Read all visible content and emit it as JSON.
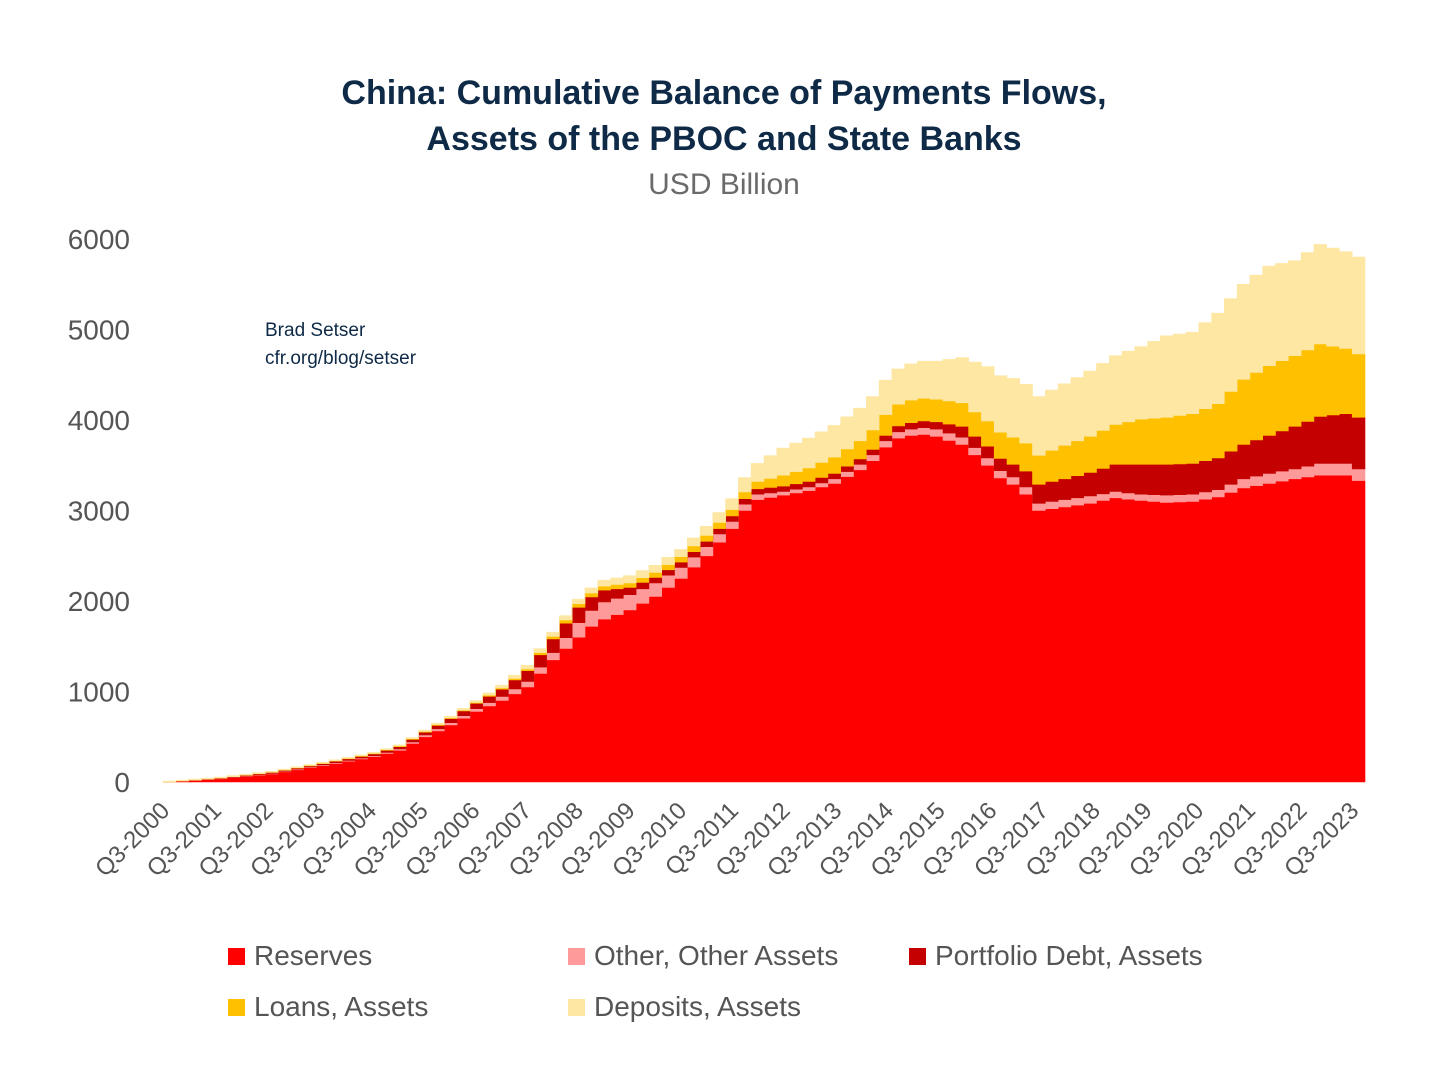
{
  "title_line1": "China: Cumulative Balance of Payments Flows,",
  "title_line2": "Assets of the PBOC and State Banks",
  "subtitle": "USD Billion",
  "credit_line1": "Brad Setser",
  "credit_line2": "cfr.org/blog/setser",
  "chart_data": {
    "type": "area",
    "stacked": true,
    "title": "China: Cumulative Balance of Payments Flows, Assets of the PBOC and State Banks",
    "subtitle": "USD Billion",
    "xlabel": "",
    "ylabel": "",
    "ylim": [
      0,
      6000
    ],
    "yticks": [
      0,
      1000,
      2000,
      3000,
      4000,
      5000,
      6000
    ],
    "x_tick_labels": [
      "Q3-2000",
      "Q3-2001",
      "Q3-2002",
      "Q3-2003",
      "Q3-2004",
      "Q3-2005",
      "Q3-2006",
      "Q3-2007",
      "Q3-2008",
      "Q3-2009",
      "Q3-2010",
      "Q3-2011",
      "Q3-2012",
      "Q3-2013",
      "Q3-2014",
      "Q3-2015",
      "Q3-2016",
      "Q3-2017",
      "Q3-2018",
      "Q3-2019",
      "Q3-2020",
      "Q3-2021",
      "Q3-2022",
      "Q3-2023"
    ],
    "x_interval": "quarterly, Q3-2000 to Q3-2023",
    "grid": false,
    "legend_position": "bottom",
    "series": [
      {
        "name": "Reserves",
        "color": "#ff0000",
        "anchors": [
          [
            0,
            0
          ],
          [
            4,
            35
          ],
          [
            8,
            90
          ],
          [
            12,
            180
          ],
          [
            16,
            280
          ],
          [
            18,
            350
          ],
          [
            20,
            500
          ],
          [
            22,
            630
          ],
          [
            24,
            780
          ],
          [
            26,
            900
          ],
          [
            28,
            1050
          ],
          [
            30,
            1350
          ],
          [
            32,
            1600
          ],
          [
            33,
            1720
          ],
          [
            34,
            1800
          ],
          [
            35,
            1850
          ],
          [
            36,
            1900
          ],
          [
            38,
            2050
          ],
          [
            40,
            2250
          ],
          [
            42,
            2500
          ],
          [
            44,
            2800
          ],
          [
            45,
            3000
          ],
          [
            46,
            3120
          ],
          [
            48,
            3170
          ],
          [
            50,
            3220
          ],
          [
            52,
            3300
          ],
          [
            54,
            3450
          ],
          [
            55,
            3550
          ],
          [
            56,
            3700
          ],
          [
            57,
            3800
          ],
          [
            58,
            3830
          ],
          [
            59,
            3840
          ],
          [
            60,
            3820
          ],
          [
            62,
            3730
          ],
          [
            64,
            3500
          ],
          [
            65,
            3360
          ],
          [
            66,
            3290
          ],
          [
            67,
            3180
          ],
          [
            68,
            3000
          ],
          [
            70,
            3040
          ],
          [
            72,
            3080
          ],
          [
            74,
            3140
          ],
          [
            76,
            3110
          ],
          [
            78,
            3090
          ],
          [
            80,
            3100
          ],
          [
            82,
            3150
          ],
          [
            84,
            3250
          ],
          [
            86,
            3300
          ],
          [
            88,
            3350
          ],
          [
            90,
            3390
          ],
          [
            92,
            3390
          ],
          [
            93,
            3330
          ]
        ]
      },
      {
        "name": "Other, Other Assets",
        "color": "#ff9a9a",
        "anchors": [
          [
            0,
            0
          ],
          [
            16,
            10
          ],
          [
            20,
            20
          ],
          [
            24,
            30
          ],
          [
            28,
            60
          ],
          [
            30,
            80
          ],
          [
            32,
            160
          ],
          [
            34,
            190
          ],
          [
            36,
            170
          ],
          [
            38,
            150
          ],
          [
            40,
            120
          ],
          [
            42,
            100
          ],
          [
            44,
            80
          ],
          [
            46,
            60
          ],
          [
            48,
            40
          ],
          [
            50,
            40
          ],
          [
            52,
            50
          ],
          [
            54,
            60
          ],
          [
            56,
            70
          ],
          [
            58,
            70
          ],
          [
            60,
            80
          ],
          [
            62,
            80
          ],
          [
            64,
            80
          ],
          [
            66,
            80
          ],
          [
            68,
            80
          ],
          [
            70,
            80
          ],
          [
            72,
            80
          ],
          [
            74,
            70
          ],
          [
            76,
            70
          ],
          [
            78,
            80
          ],
          [
            80,
            80
          ],
          [
            82,
            80
          ],
          [
            84,
            100
          ],
          [
            86,
            110
          ],
          [
            88,
            110
          ],
          [
            90,
            130
          ],
          [
            92,
            130
          ],
          [
            93,
            130
          ]
        ]
      },
      {
        "name": "Portfolio Debt, Assets",
        "color": "#c40000",
        "anchors": [
          [
            0,
            0
          ],
          [
            16,
            20
          ],
          [
            20,
            30
          ],
          [
            24,
            60
          ],
          [
            26,
            80
          ],
          [
            28,
            120
          ],
          [
            30,
            150
          ],
          [
            32,
            170
          ],
          [
            34,
            130
          ],
          [
            36,
            80
          ],
          [
            38,
            60
          ],
          [
            40,
            60
          ],
          [
            42,
            60
          ],
          [
            44,
            60
          ],
          [
            46,
            60
          ],
          [
            48,
            60
          ],
          [
            50,
            60
          ],
          [
            52,
            60
          ],
          [
            54,
            60
          ],
          [
            56,
            60
          ],
          [
            58,
            70
          ],
          [
            60,
            80
          ],
          [
            62,
            120
          ],
          [
            64,
            130
          ],
          [
            66,
            140
          ],
          [
            68,
            210
          ],
          [
            70,
            230
          ],
          [
            72,
            260
          ],
          [
            74,
            300
          ],
          [
            76,
            330
          ],
          [
            78,
            340
          ],
          [
            80,
            340
          ],
          [
            82,
            350
          ],
          [
            84,
            380
          ],
          [
            86,
            420
          ],
          [
            88,
            470
          ],
          [
            90,
            520
          ],
          [
            92,
            550
          ],
          [
            93,
            570
          ]
        ]
      },
      {
        "name": "Loans, Assets",
        "color": "#ffc000",
        "anchors": [
          [
            0,
            0
          ],
          [
            24,
            10
          ],
          [
            28,
            20
          ],
          [
            32,
            40
          ],
          [
            36,
            50
          ],
          [
            40,
            60
          ],
          [
            44,
            70
          ],
          [
            46,
            80
          ],
          [
            48,
            120
          ],
          [
            50,
            150
          ],
          [
            52,
            180
          ],
          [
            54,
            200
          ],
          [
            56,
            230
          ],
          [
            58,
            250
          ],
          [
            60,
            250
          ],
          [
            62,
            260
          ],
          [
            64,
            280
          ],
          [
            66,
            300
          ],
          [
            68,
            320
          ],
          [
            70,
            370
          ],
          [
            72,
            400
          ],
          [
            74,
            440
          ],
          [
            76,
            500
          ],
          [
            78,
            520
          ],
          [
            80,
            550
          ],
          [
            82,
            600
          ],
          [
            84,
            720
          ],
          [
            86,
            770
          ],
          [
            88,
            780
          ],
          [
            90,
            800
          ],
          [
            92,
            720
          ],
          [
            93,
            700
          ]
        ]
      },
      {
        "name": "Deposits, Assets",
        "color": "#fde7a3",
        "anchors": [
          [
            0,
            10
          ],
          [
            16,
            10
          ],
          [
            24,
            20
          ],
          [
            28,
            40
          ],
          [
            32,
            50
          ],
          [
            36,
            80
          ],
          [
            40,
            80
          ],
          [
            44,
            120
          ],
          [
            46,
            200
          ],
          [
            48,
            300
          ],
          [
            50,
            330
          ],
          [
            52,
            350
          ],
          [
            54,
            360
          ],
          [
            56,
            380
          ],
          [
            58,
            400
          ],
          [
            60,
            420
          ],
          [
            62,
            500
          ],
          [
            64,
            600
          ],
          [
            66,
            650
          ],
          [
            68,
            650
          ],
          [
            70,
            680
          ],
          [
            72,
            720
          ],
          [
            74,
            760
          ],
          [
            76,
            800
          ],
          [
            78,
            900
          ],
          [
            80,
            900
          ],
          [
            82,
            1000
          ],
          [
            84,
            1050
          ],
          [
            86,
            1100
          ],
          [
            88,
            1050
          ],
          [
            90,
            1100
          ],
          [
            92,
            1070
          ],
          [
            93,
            1070
          ]
        ]
      }
    ]
  }
}
